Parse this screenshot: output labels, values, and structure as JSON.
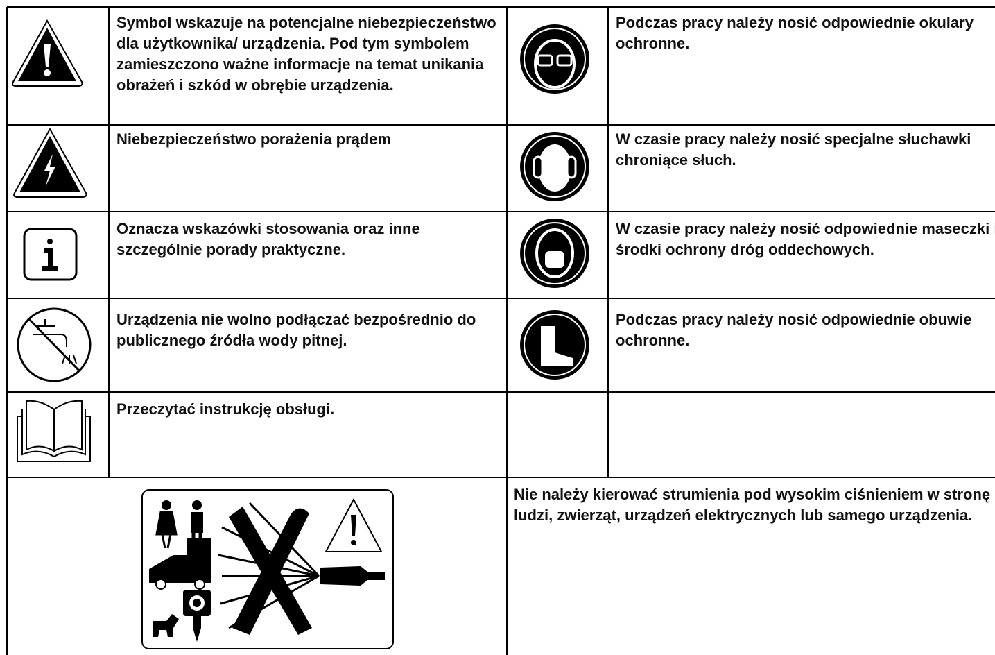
{
  "table": {
    "rows": [
      {
        "left": "Symbol wskazuje na potencjalne niebezpieczeństwo dla użytkownika/ urządzenia. Pod tym symbolem zamieszczono ważne informacje na temat unikania obrażeń i szkód w obrębie urządzenia.",
        "right": "Podczas pracy należy nosić odpowiednie okulary ochronne."
      },
      {
        "left": "Niebezpieczeństwo porażenia prądem",
        "right": "W czasie pracy należy nosić specjalne słuchawki chroniące słuch."
      },
      {
        "left": "Oznacza wskazówki stosowania oraz inne szczególnie porady praktyczne.",
        "right": "W czasie pracy należy nosić odpowiednie maseczki i środki ochrony dróg oddechowych."
      },
      {
        "left": "Urządzenia nie wolno podłączać bezpośrednio do publicznego źródła wody pitnej.",
        "right": "Podczas pracy należy nosić odpowiednie obuwie ochronne."
      },
      {
        "left": "Przeczytać instrukcję obsługi."
      }
    ],
    "bottom": "Nie należy kierować strumienia pod wysokim ciśnieniem w stronę ludzi, zwierząt, urządzeń elektrycznych lub samego urządzenia."
  }
}
